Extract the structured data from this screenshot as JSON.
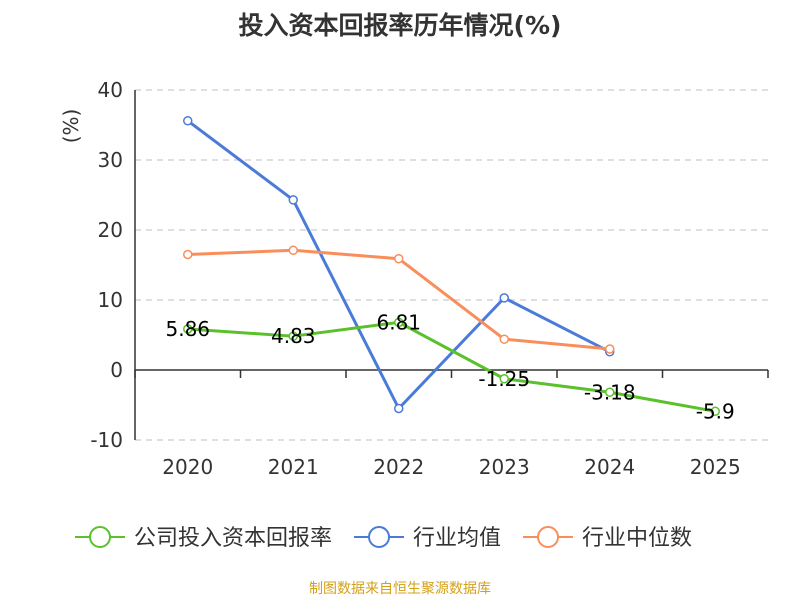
{
  "title": "投入资本回报率历年情况(%)",
  "source": "制图数据来自恒生聚源数据库",
  "colors": {
    "axis": "#333333",
    "grid": "#cccccc",
    "unit": "#cc0000",
    "source": "#d4a017"
  },
  "chart_data": {
    "type": "line",
    "ylabel": "(%)",
    "ylim": [
      -10,
      40
    ],
    "yticks": [
      -10,
      0,
      10,
      20,
      30,
      40
    ],
    "grid": true,
    "legend_position": "bottom",
    "categories": [
      "2020",
      "2021",
      "2022",
      "2023",
      "2024",
      "2025"
    ],
    "series": [
      {
        "name": "公司投入资本回报率",
        "color": "#5ac02c",
        "values": [
          5.86,
          4.83,
          6.81,
          -1.25,
          -3.18,
          -5.9
        ],
        "labels": [
          "5.86",
          "4.83",
          "6.81",
          "-1.25",
          "-3.18",
          "-5.9"
        ]
      },
      {
        "name": "行业均值",
        "color": "#4b7bd8",
        "values": [
          35.6,
          24.3,
          -5.5,
          10.3,
          2.6,
          null
        ]
      },
      {
        "name": "行业中位数",
        "color": "#f98e5a",
        "values": [
          16.5,
          17.1,
          15.9,
          4.4,
          3.0,
          null
        ]
      }
    ]
  }
}
